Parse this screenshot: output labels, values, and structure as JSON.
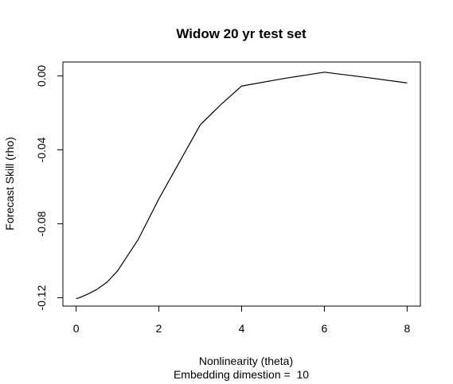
{
  "chart_data": {
    "type": "line",
    "title": "Widow 20 yr test set",
    "xlabel": "Nonlinearity (theta)",
    "sublabel": "Embedding dimestion =  10",
    "ylabel": "Forecast Skill (rho)",
    "xlim": [
      -0.32,
      8.32
    ],
    "ylim": [
      -0.1245,
      0.0075
    ],
    "x_ticks": [
      0,
      2,
      4,
      6,
      8
    ],
    "x_tick_labels": [
      "0",
      "2",
      "4",
      "6",
      "8"
    ],
    "y_ticks": [
      -0.12,
      -0.08,
      -0.04,
      0.0
    ],
    "y_tick_labels": [
      "-0.12",
      "-0.08",
      "-0.04",
      "0.00"
    ],
    "grid": false,
    "legend": "none",
    "line_color": "#000000",
    "series": [
      {
        "x": [
          0,
          0.1,
          0.3,
          0.5,
          0.75,
          1,
          1.5,
          2,
          2.5,
          3,
          3.5,
          4,
          5,
          6,
          7,
          8
        ],
        "values": [
          -0.1205,
          -0.1198,
          -0.1178,
          -0.1155,
          -0.1115,
          -0.1055,
          -0.0885,
          -0.0665,
          -0.0465,
          -0.0265,
          -0.0155,
          -0.0055,
          -0.0015,
          0.002,
          -0.0008,
          -0.0038
        ]
      }
    ]
  }
}
